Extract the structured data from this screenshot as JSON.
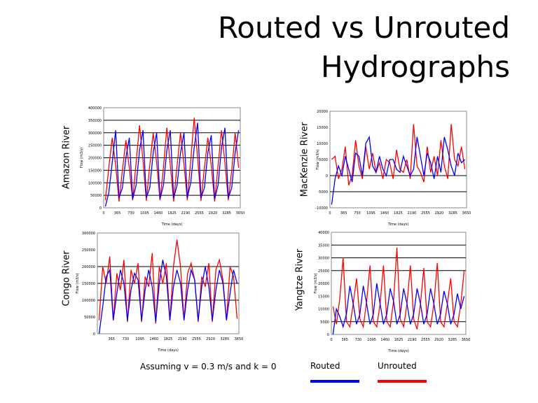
{
  "title_line1": "Routed vs Unrouted",
  "title_line2": "Hydrographs",
  "footnote": "Assuming v = 0.3 m/s and k = 0",
  "legend": [
    {
      "label": "Routed",
      "color": "#0000ff"
    },
    {
      "label": "Unrouted",
      "color": "#ff0000"
    }
  ],
  "chart_data": [
    {
      "type": "line",
      "title": "Amazon River",
      "xlabel": "Time (days)",
      "ylabel": "Flow (m3/s)",
      "xlim": [
        0,
        3650
      ],
      "x_step": 91.25,
      "xticks": [
        "0",
        "365",
        "730",
        "1095",
        "1460",
        "1825",
        "2190",
        "2555",
        "2920",
        "3285",
        "3650"
      ],
      "ylim": [
        0,
        400000
      ],
      "yticks": [
        "0",
        "50000",
        "100000",
        "150000",
        "200000",
        "250000",
        "300000",
        "350000",
        "400000"
      ],
      "gridlines": [
        50000,
        100000,
        150000,
        200000,
        250000,
        300000,
        350000
      ],
      "series": [
        {
          "name": "Unrouted",
          "color": "#ff0000",
          "values": [
            30000,
            160000,
            280000,
            170000,
            25000,
            150000,
            270000,
            160000,
            30000,
            180000,
            330000,
            190000,
            28000,
            170000,
            300000,
            180000,
            30000,
            160000,
            320000,
            170000,
            25000,
            170000,
            300000,
            175000,
            30000,
            190000,
            360000,
            200000,
            28000,
            160000,
            280000,
            170000,
            25000,
            170000,
            310000,
            180000,
            30000,
            150000,
            300000,
            160000
          ]
        },
        {
          "name": "Routed",
          "color": "#0000ff",
          "values": [
            5000,
            60000,
            180000,
            310000,
            40000,
            80000,
            200000,
            280000,
            35000,
            90000,
            230000,
            310000,
            40000,
            80000,
            220000,
            300000,
            35000,
            90000,
            230000,
            310000,
            40000,
            90000,
            220000,
            300000,
            40000,
            100000,
            240000,
            340000,
            40000,
            80000,
            220000,
            290000,
            35000,
            90000,
            240000,
            320000,
            40000,
            80000,
            220000,
            310000
          ]
        }
      ]
    },
    {
      "type": "line",
      "title": "MacKenzie River",
      "xlabel": "Time (days)",
      "ylabel": "Flow (m3/s)",
      "xlim": [
        0,
        3650
      ],
      "x_step": 91.25,
      "xticks": [
        "0",
        "365",
        "730",
        "1095",
        "1460",
        "1825",
        "2190",
        "2555",
        "2920",
        "3285",
        "3650"
      ],
      "ylim": [
        -10000,
        20000
      ],
      "yticks": [
        "-10000",
        "-5000",
        "0",
        "5000",
        "10000",
        "15000",
        "20000"
      ],
      "gridlines": [
        -5000,
        0
      ],
      "series": [
        {
          "name": "Unrouted",
          "color": "#ff0000",
          "values": [
            5000,
            6000,
            -1000,
            2000,
            9000,
            -3000,
            0,
            11000,
            3000,
            -1000,
            9000,
            2000,
            7000,
            1000,
            4000,
            -1000,
            5000,
            4000,
            -1000,
            8000,
            2000,
            1000,
            5000,
            -1000,
            16000,
            3000,
            1000,
            -2000,
            9000,
            1000,
            6000,
            0,
            11000,
            3000,
            -1000,
            16000,
            5000,
            3000,
            9000,
            2000
          ]
        },
        {
          "name": "Routed",
          "color": "#0000ff",
          "values": [
            -9000,
            -1000,
            3000,
            0,
            6000,
            2000,
            -2000,
            7000,
            6000,
            0,
            10000,
            12000,
            3000,
            1000,
            6000,
            2000,
            0,
            5000,
            5000,
            2000,
            1000,
            6000,
            3000,
            0,
            2000,
            12000,
            6000,
            0,
            7000,
            4000,
            -1000,
            6000,
            1000,
            12000,
            8000,
            3000,
            0,
            7000,
            4000,
            5000
          ]
        }
      ]
    },
    {
      "type": "line",
      "title": "Congo River",
      "xlabel": "Time (days)",
      "ylabel": "Flow (m3/s)",
      "xlim": [
        0,
        3650
      ],
      "x_step": 91.25,
      "xticks": [
        "365",
        "730",
        "1095",
        "1460",
        "1825",
        "2190",
        "2555",
        "2920",
        "3285",
        "3650"
      ],
      "ylim": [
        0,
        300000
      ],
      "yticks": [
        "0",
        "50000",
        "100000",
        "150000",
        "200000",
        "250000",
        "300000"
      ],
      "gridlines": [
        100000,
        150000,
        200000
      ],
      "series": [
        {
          "name": "Unrouted",
          "color": "#ff0000",
          "values": [
            40000,
            200000,
            150000,
            230000,
            40000,
            180000,
            130000,
            220000,
            35000,
            190000,
            150000,
            210000,
            35000,
            170000,
            140000,
            240000,
            30000,
            200000,
            150000,
            210000,
            40000,
            200000,
            280000,
            200000,
            40000,
            180000,
            210000,
            160000,
            35000,
            170000,
            140000,
            210000,
            35000,
            190000,
            220000,
            160000,
            40000,
            200000,
            170000,
            45000
          ]
        },
        {
          "name": "Routed",
          "color": "#0000ff",
          "values": [
            0,
            80000,
            170000,
            190000,
            40000,
            120000,
            190000,
            150000,
            40000,
            130000,
            180000,
            160000,
            40000,
            130000,
            190000,
            140000,
            35000,
            150000,
            220000,
            170000,
            40000,
            140000,
            190000,
            150000,
            40000,
            130000,
            190000,
            160000,
            40000,
            140000,
            200000,
            140000,
            40000,
            130000,
            190000,
            150000,
            40000,
            120000,
            190000,
            150000
          ]
        }
      ]
    },
    {
      "type": "line",
      "title": "Yangtze River",
      "xlabel": "Time (days)",
      "ylabel": "Flow (m3/s)",
      "xlim": [
        0,
        3650
      ],
      "x_step": 91.25,
      "xticks": [
        "0",
        "365",
        "730",
        "1095",
        "1460",
        "1825",
        "2190",
        "2555",
        "2920",
        "3285",
        "3650"
      ],
      "ylim": [
        0,
        40000
      ],
      "yticks": [
        "0",
        "5000",
        "10000",
        "15000",
        "20000",
        "25000",
        "30000",
        "35000",
        "40000"
      ],
      "gridlines": [
        5000,
        25000,
        30000,
        35000
      ],
      "series": [
        {
          "name": "Unrouted",
          "color": "#ff0000",
          "values": [
            11000,
            4000,
            14000,
            30000,
            5000,
            3000,
            12000,
            22000,
            6000,
            3000,
            13000,
            27000,
            5000,
            3000,
            12000,
            27000,
            5000,
            3000,
            13000,
            34000,
            6000,
            3000,
            12000,
            27000,
            6000,
            2000,
            12000,
            26000,
            5000,
            3000,
            12000,
            28000,
            5000,
            3000,
            12000,
            22000,
            5000,
            3000,
            12000,
            25000
          ]
        },
        {
          "name": "Routed",
          "color": "#0000ff",
          "values": [
            0,
            10000,
            7000,
            3000,
            8000,
            19000,
            12000,
            4000,
            8000,
            19000,
            12000,
            4000,
            8000,
            20000,
            12000,
            4000,
            8000,
            18000,
            13000,
            4000,
            8000,
            18000,
            12000,
            4000,
            8000,
            18000,
            12000,
            4000,
            8000,
            18000,
            12000,
            4000,
            8000,
            17000,
            12000,
            4000,
            8000,
            16000,
            10000,
            15000
          ]
        }
      ]
    }
  ]
}
